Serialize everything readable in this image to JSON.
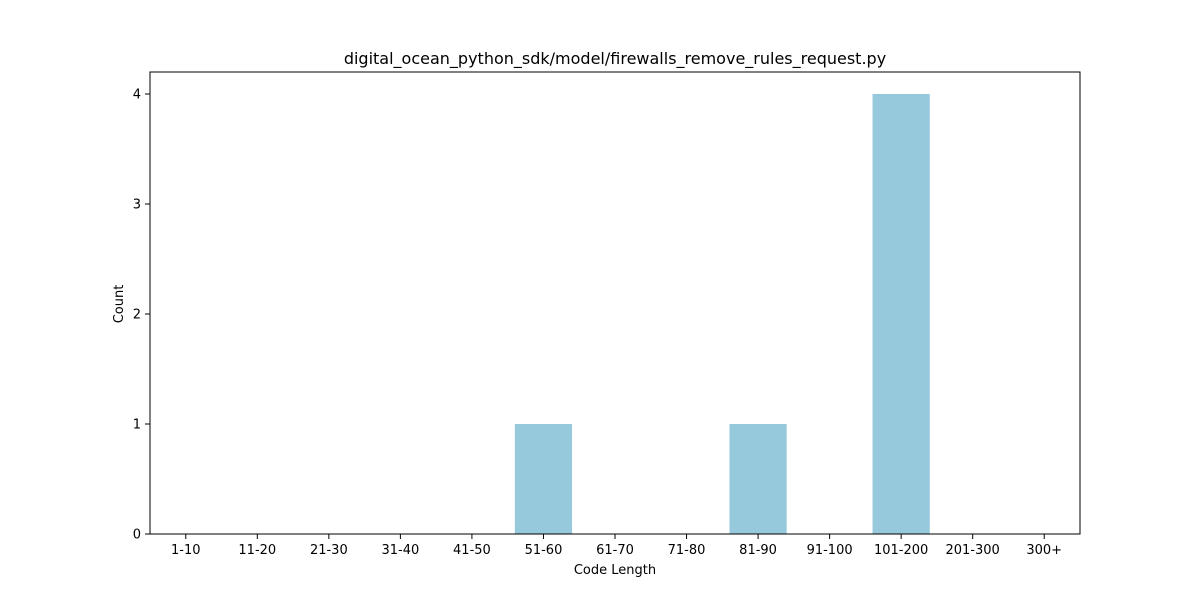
{
  "chart_data": {
    "type": "bar",
    "title": "digital_ocean_python_sdk/model/firewalls_remove_rules_request.py",
    "xlabel": "Code Length",
    "ylabel": "Count",
    "categories": [
      "1-10",
      "11-20",
      "21-30",
      "31-40",
      "41-50",
      "51-60",
      "61-70",
      "71-80",
      "81-90",
      "91-100",
      "101-200",
      "201-300",
      "300+"
    ],
    "values": [
      0,
      0,
      0,
      0,
      0,
      1,
      0,
      0,
      1,
      0,
      4,
      0,
      0
    ],
    "ylim": [
      0,
      4.2
    ],
    "yticks": [
      0,
      1,
      2,
      3,
      4
    ],
    "grid": false,
    "legend": "none",
    "bar_color": "#96c9dc",
    "axis_color": "#000000"
  }
}
